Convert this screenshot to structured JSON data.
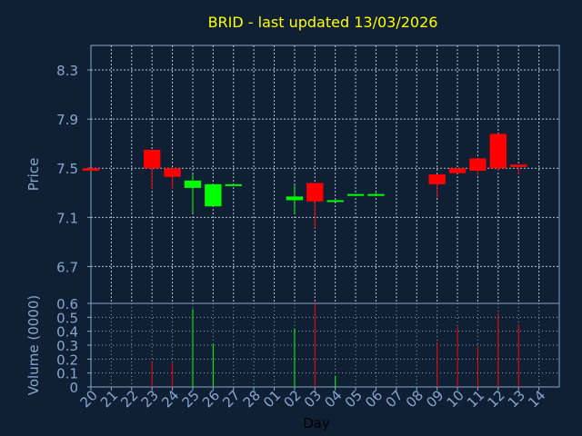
{
  "chart_data": [
    {
      "type": "candlestick",
      "title": "BRID - last updated 13/03/2026",
      "ylabel": "Price",
      "ylim": [
        6.4,
        8.5
      ],
      "yticks": [
        "8.3",
        "7.9",
        "7.5",
        "7.1",
        "6.7"
      ],
      "grid": true,
      "colors": {
        "up": "#00ff00",
        "down": "#ff0000",
        "title": "#ffff00",
        "axis": "#8aa6cc",
        "background": "#0f2035"
      },
      "candles": [
        {
          "day": "20",
          "open": 7.5,
          "close": 7.48,
          "high": 7.5,
          "low": 7.48
        },
        {
          "day": "21"
        },
        {
          "day": "22"
        },
        {
          "day": "23",
          "open": 7.65,
          "close": 7.5,
          "high": 7.65,
          "low": 7.33
        },
        {
          "day": "24",
          "open": 7.5,
          "close": 7.43,
          "high": 7.5,
          "low": 7.33
        },
        {
          "day": "25",
          "open": 7.34,
          "close": 7.4,
          "high": 7.45,
          "low": 7.14
        },
        {
          "day": "26",
          "open": 7.19,
          "close": 7.37,
          "high": 7.37,
          "low": 7.19
        },
        {
          "day": "27",
          "open": 7.37,
          "close": 7.37,
          "high": 7.37,
          "low": 7.37
        },
        {
          "day": "28"
        },
        {
          "day": "01"
        },
        {
          "day": "02",
          "open": 7.24,
          "close": 7.27,
          "high": 7.36,
          "low": 7.13
        },
        {
          "day": "03",
          "open": 7.38,
          "close": 7.23,
          "high": 7.38,
          "low": 7.01
        },
        {
          "day": "04",
          "open": 7.24,
          "close": 7.24,
          "high": 7.24,
          "low": 7.24
        },
        {
          "day": "05",
          "open": 7.29,
          "close": 7.29,
          "high": 7.29,
          "low": 7.29
        },
        {
          "day": "06",
          "open": 7.29,
          "close": 7.29,
          "high": 7.3,
          "low": 7.29
        },
        {
          "day": "07"
        },
        {
          "day": "08"
        },
        {
          "day": "09",
          "open": 7.45,
          "close": 7.37,
          "high": 7.45,
          "low": 7.26
        },
        {
          "day": "10",
          "open": 7.5,
          "close": 7.46,
          "high": 7.5,
          "low": 7.46
        },
        {
          "day": "11",
          "open": 7.58,
          "close": 7.48,
          "high": 7.58,
          "low": 7.44
        },
        {
          "day": "12",
          "open": 7.78,
          "close": 7.5,
          "high": 7.78,
          "low": 7.48
        },
        {
          "day": "13",
          "open": 7.53,
          "close": 7.51,
          "high": 7.53,
          "low": 7.45
        },
        {
          "day": "14"
        }
      ]
    },
    {
      "type": "bar",
      "ylabel": "Volume (0000)",
      "xlabel": "Day",
      "ylim": [
        0,
        0.6
      ],
      "yticks": [
        "0.6",
        "0.5",
        "0.4",
        "0.3",
        "0.2",
        "0.1",
        "0"
      ],
      "categories": [
        "20",
        "21",
        "22",
        "23",
        "24",
        "25",
        "26",
        "27",
        "28",
        "01",
        "02",
        "03",
        "04",
        "05",
        "06",
        "07",
        "08",
        "09",
        "10",
        "11",
        "12",
        "13",
        "14"
      ],
      "values": [
        0,
        0,
        0,
        0.18,
        0.17,
        0.56,
        0.31,
        0,
        0,
        0,
        0.42,
        0.6,
        0.08,
        0,
        0,
        0,
        0,
        0.32,
        0.43,
        0.29,
        0.53,
        0.45,
        0
      ],
      "bar_colors": [
        "",
        "",
        "",
        "#ff0000",
        "#ff0000",
        "#00ff00",
        "#00ff00",
        "",
        "",
        "",
        "#00ff00",
        "#ff0000",
        "#00ff00",
        "",
        "",
        "",
        "",
        "#ff0000",
        "#ff0000",
        "#ff0000",
        "#ff0000",
        "#ff0000",
        ""
      ]
    }
  ]
}
